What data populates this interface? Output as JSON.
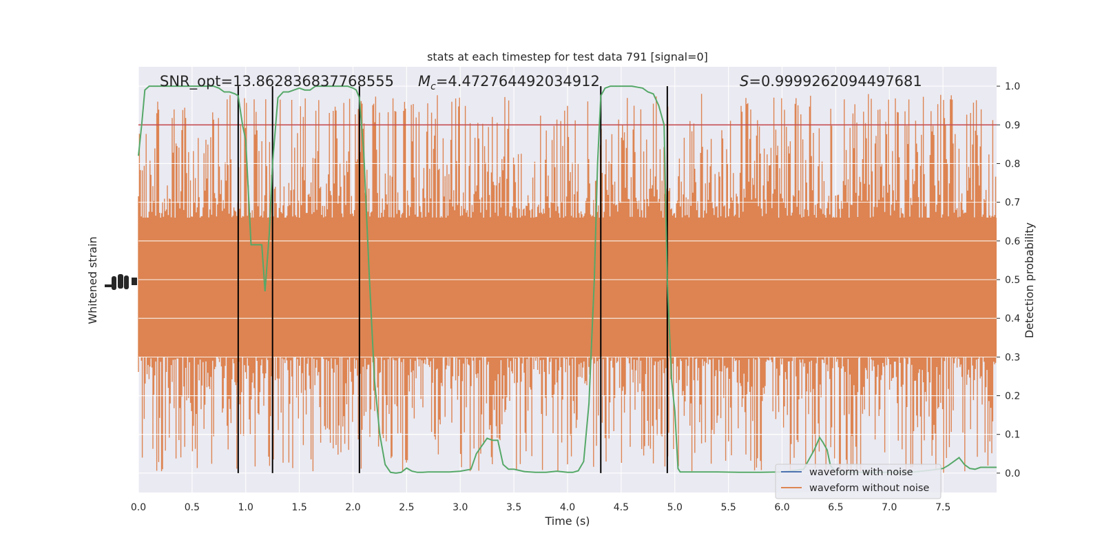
{
  "chart_data": {
    "type": "line",
    "title": "stats at each timestep for test data 791 [signal=0]",
    "xlabel": "Time (s)",
    "ylabel_left": "Whitened strain",
    "ylabel_right": "Detection probability",
    "xlim": [
      0,
      8
    ],
    "ylim_right": [
      -0.05,
      1.05
    ],
    "x_ticks": [
      "0.0",
      "0.5",
      "1.0",
      "1.5",
      "2.0",
      "2.5",
      "3.0",
      "3.5",
      "4.0",
      "4.5",
      "5.0",
      "5.5",
      "6.0",
      "6.5",
      "7.0",
      "7.5"
    ],
    "x_tick_values": [
      0.0,
      0.5,
      1.0,
      1.5,
      2.0,
      2.5,
      3.0,
      3.5,
      4.0,
      4.5,
      5.0,
      5.5,
      6.0,
      6.5,
      7.0,
      7.5
    ],
    "y_right_ticks": [
      "0.0",
      "0.1",
      "0.2",
      "0.3",
      "0.4",
      "0.5",
      "0.6",
      "0.7",
      "0.8",
      "0.9",
      "1.0"
    ],
    "y_right_tick_values": [
      0.0,
      0.1,
      0.2,
      0.3,
      0.4,
      0.5,
      0.6,
      0.7,
      0.8,
      0.9,
      1.0
    ],
    "grid": true,
    "legend_position": "lower-right",
    "annotations": {
      "snr": "SNR_opt=13.862836837768555",
      "mc_symbol": "M",
      "mc_sub": "c",
      "mc_value": "=4.472764492034912",
      "s_symbol": "S",
      "s_value": "=0.9999262094497681"
    },
    "threshold": 0.9,
    "vertical_lines_x": [
      0.93,
      1.25,
      2.06,
      4.31,
      4.93
    ],
    "series": [
      {
        "name": "waveform with noise",
        "color": "#4c72b0",
        "role": "strain"
      },
      {
        "name": "waveform without noise",
        "color": "#dd8452",
        "role": "strain",
        "band_center_prob": 0.48,
        "band_core_halfwidth_prob": 0.18,
        "band_spike_max_prob": 0.98
      },
      {
        "color": "#55a868",
        "role": "detection-probability",
        "x": [
          0.0,
          0.03,
          0.06,
          0.1,
          0.2,
          0.3,
          0.4,
          0.5,
          0.6,
          0.7,
          0.75,
          0.8,
          0.85,
          0.9,
          0.93,
          0.97,
          1.0,
          1.05,
          1.1,
          1.15,
          1.18,
          1.22,
          1.25,
          1.3,
          1.35,
          1.4,
          1.45,
          1.5,
          1.55,
          1.6,
          1.65,
          1.7,
          1.75,
          1.8,
          1.85,
          1.9,
          1.95,
          2.0,
          2.03,
          2.06,
          2.1,
          2.15,
          2.2,
          2.25,
          2.3,
          2.35,
          2.4,
          2.45,
          2.5,
          2.55,
          2.6,
          2.65,
          2.7,
          2.8,
          2.9,
          3.0,
          3.1,
          3.15,
          3.2,
          3.25,
          3.3,
          3.35,
          3.4,
          3.45,
          3.5,
          3.6,
          3.7,
          3.8,
          3.9,
          4.0,
          4.05,
          4.1,
          4.15,
          4.2,
          4.25,
          4.28,
          4.31,
          4.35,
          4.4,
          4.45,
          4.5,
          4.6,
          4.7,
          4.75,
          4.8,
          4.85,
          4.9,
          4.93,
          4.97,
          5.0,
          5.03,
          5.05,
          5.1,
          5.2,
          5.4,
          5.6,
          5.8,
          6.0,
          6.2,
          6.3,
          6.35,
          6.38,
          6.42,
          6.45,
          6.5,
          6.6,
          6.8,
          7.0,
          7.2,
          7.4,
          7.5,
          7.55,
          7.6,
          7.65,
          7.7,
          7.75,
          7.8,
          7.85,
          7.9,
          7.95,
          8.0
        ],
        "y": [
          0.82,
          0.9,
          0.99,
          1.0,
          1.0,
          1.0,
          1.0,
          1.0,
          1.0,
          1.0,
          0.995,
          0.985,
          0.985,
          0.98,
          0.975,
          0.9,
          0.86,
          0.59,
          0.59,
          0.59,
          0.47,
          0.62,
          0.8,
          0.97,
          0.985,
          0.985,
          0.99,
          0.995,
          0.99,
          0.99,
          1.0,
          1.0,
          1.0,
          1.0,
          1.0,
          1.0,
          1.0,
          0.995,
          0.99,
          0.97,
          0.83,
          0.52,
          0.24,
          0.1,
          0.022,
          0.002,
          0.0,
          0.002,
          0.013,
          0.005,
          0.002,
          0.002,
          0.003,
          0.003,
          0.003,
          0.005,
          0.01,
          0.05,
          0.07,
          0.09,
          0.085,
          0.085,
          0.022,
          0.01,
          0.01,
          0.004,
          0.002,
          0.002,
          0.005,
          0.002,
          0.002,
          0.006,
          0.03,
          0.18,
          0.5,
          0.8,
          0.975,
          0.995,
          1.0,
          1.0,
          1.0,
          1.0,
          0.995,
          0.985,
          0.98,
          0.95,
          0.9,
          0.5,
          0.24,
          0.16,
          0.012,
          0.003,
          0.003,
          0.003,
          0.003,
          0.002,
          0.002,
          0.003,
          0.01,
          0.06,
          0.092,
          0.08,
          0.06,
          0.02,
          0.003,
          0.002,
          0.002,
          0.002,
          0.002,
          0.008,
          0.012,
          0.02,
          0.03,
          0.04,
          0.022,
          0.012,
          0.01,
          0.015,
          0.015,
          0.015,
          0.015
        ]
      }
    ],
    "colors": {
      "plot_bg": "#eaeaf2",
      "grid": "#ffffff",
      "threshold": "#c44e52",
      "vline": "#000000",
      "text": "#262626"
    }
  }
}
